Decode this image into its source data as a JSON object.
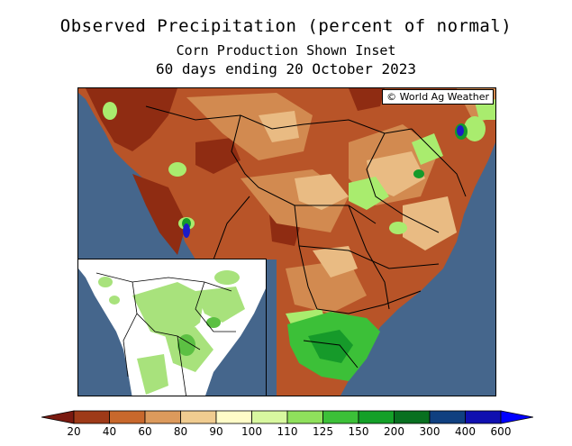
{
  "title": "Observed Precipitation (percent of normal)",
  "subtitle": "Corn Production Shown Inset",
  "period": "60 days ending 20 October 2023",
  "credit": "© World Ag Weather",
  "legend": {
    "stops": [
      "20",
      "40",
      "60",
      "80",
      "90",
      "100",
      "110",
      "125",
      "150",
      "200",
      "300",
      "400",
      "600"
    ],
    "colors": [
      "#7a1a10",
      "#9e3a18",
      "#c8682c",
      "#dc9a5c",
      "#f0cc90",
      "#fffcc8",
      "#d8f8a0",
      "#8fe05c",
      "#3cc038",
      "#14a028",
      "#087020",
      "#104080",
      "#1010b0",
      "#0000ff"
    ],
    "under_color": "#7a1a10",
    "over_color": "#0000ff"
  },
  "colors": {
    "ocean": "#45668c",
    "brown_dark": "#8f2c12",
    "brown": "#b85428",
    "tan": "#d28a50",
    "light_tan": "#e9bb83",
    "green_light": "#a9ec6e",
    "green": "#3cc038",
    "green_dark": "#169a2a",
    "blue": "#1c1cc8",
    "inset_green": "#a8e27c"
  }
}
